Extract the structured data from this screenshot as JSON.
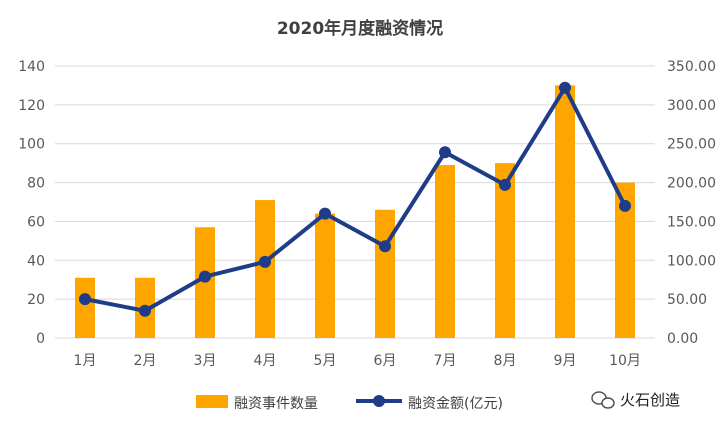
{
  "chart_data": {
    "type": "bar+line",
    "title": "2020年月度融资情况",
    "categories": [
      "1月",
      "2月",
      "3月",
      "4月",
      "5月",
      "6月",
      "7月",
      "8月",
      "9月",
      "10月"
    ],
    "series": [
      {
        "name": "融资事件数量",
        "type": "bar",
        "axis": "left",
        "color": "#FFA500",
        "values": [
          31,
          31,
          57,
          71,
          64,
          66,
          89,
          90,
          130,
          80
        ]
      },
      {
        "name": "融资金额(亿元)",
        "type": "line",
        "axis": "right",
        "color": "#1F3C88",
        "values": [
          50,
          35,
          79,
          98,
          160,
          118,
          239,
          197,
          322,
          170
        ]
      }
    ],
    "y_left": {
      "min": 0,
      "max": 140,
      "step": 20,
      "tick_labels": [
        "0",
        "20",
        "40",
        "60",
        "80",
        "100",
        "120",
        "140"
      ]
    },
    "y_right": {
      "min": 0,
      "max": 350,
      "step": 50,
      "tick_labels": [
        "0.00",
        "50.00",
        "100.00",
        "150.00",
        "200.00",
        "250.00",
        "300.00",
        "350.00"
      ]
    },
    "grid": "horizontal",
    "legend_position": "bottom"
  },
  "watermark": {
    "text": "火石创造",
    "icon": "wechat-logo-icon"
  }
}
